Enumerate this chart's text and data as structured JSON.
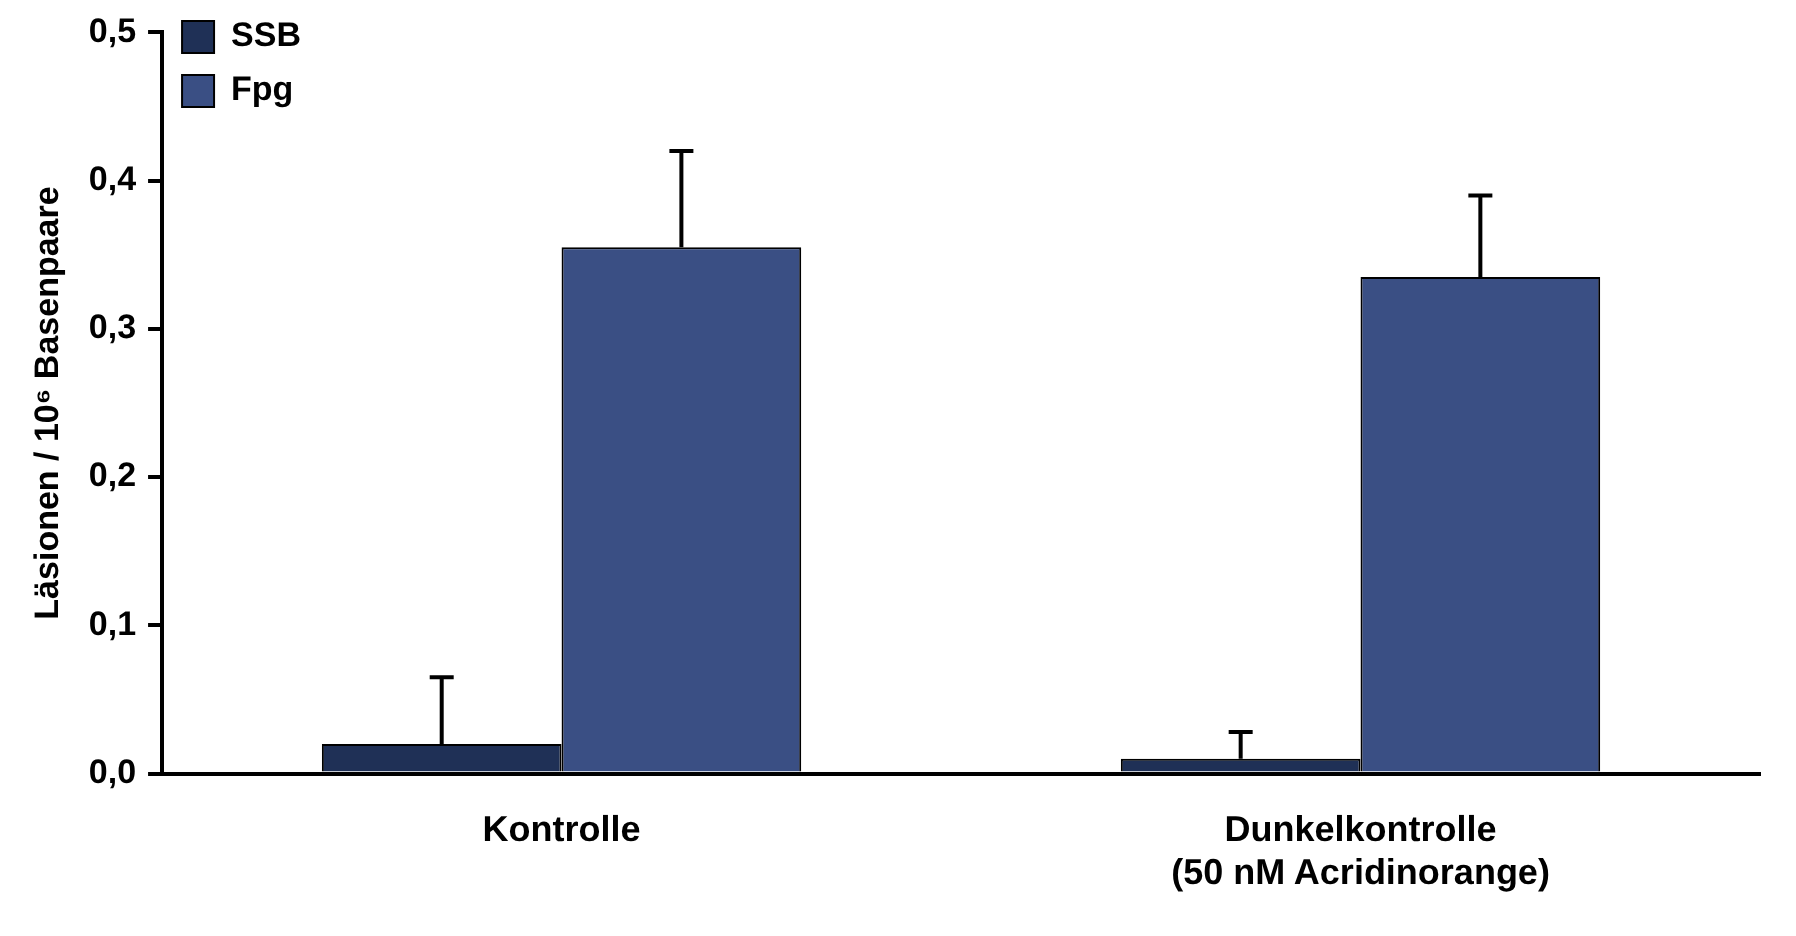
{
  "chart_data": {
    "type": "bar",
    "ylabel": "Läsionen / 10⁶ Basenpaare",
    "categories": [
      "Kontrolle",
      "Dunkelkontrolle\n(50 nM Acridinorange)"
    ],
    "series": [
      {
        "name": "SSB",
        "color": "#1f3056",
        "values": [
          0.02,
          0.01
        ],
        "errors": [
          [
            0.02,
            0.065
          ],
          [
            0.01,
            0.028
          ]
        ]
      },
      {
        "name": "Fpg",
        "color": "#3a4f84",
        "values": [
          0.355,
          0.335
        ],
        "errors": [
          [
            0.355,
            0.42
          ],
          [
            0.335,
            0.39
          ]
        ]
      }
    ],
    "ylim": [
      0,
      0.5
    ],
    "yticks": [
      {
        "value": 0,
        "label": "0,0"
      },
      {
        "value": 0.1,
        "label": "0,1"
      },
      {
        "value": 0.2,
        "label": "0,2"
      },
      {
        "value": 0.3,
        "label": "0,3"
      },
      {
        "value": 0.4,
        "label": "0,4"
      },
      {
        "value": 0.5,
        "label": "0,5"
      }
    ],
    "grid": false,
    "legend": "top left"
  }
}
